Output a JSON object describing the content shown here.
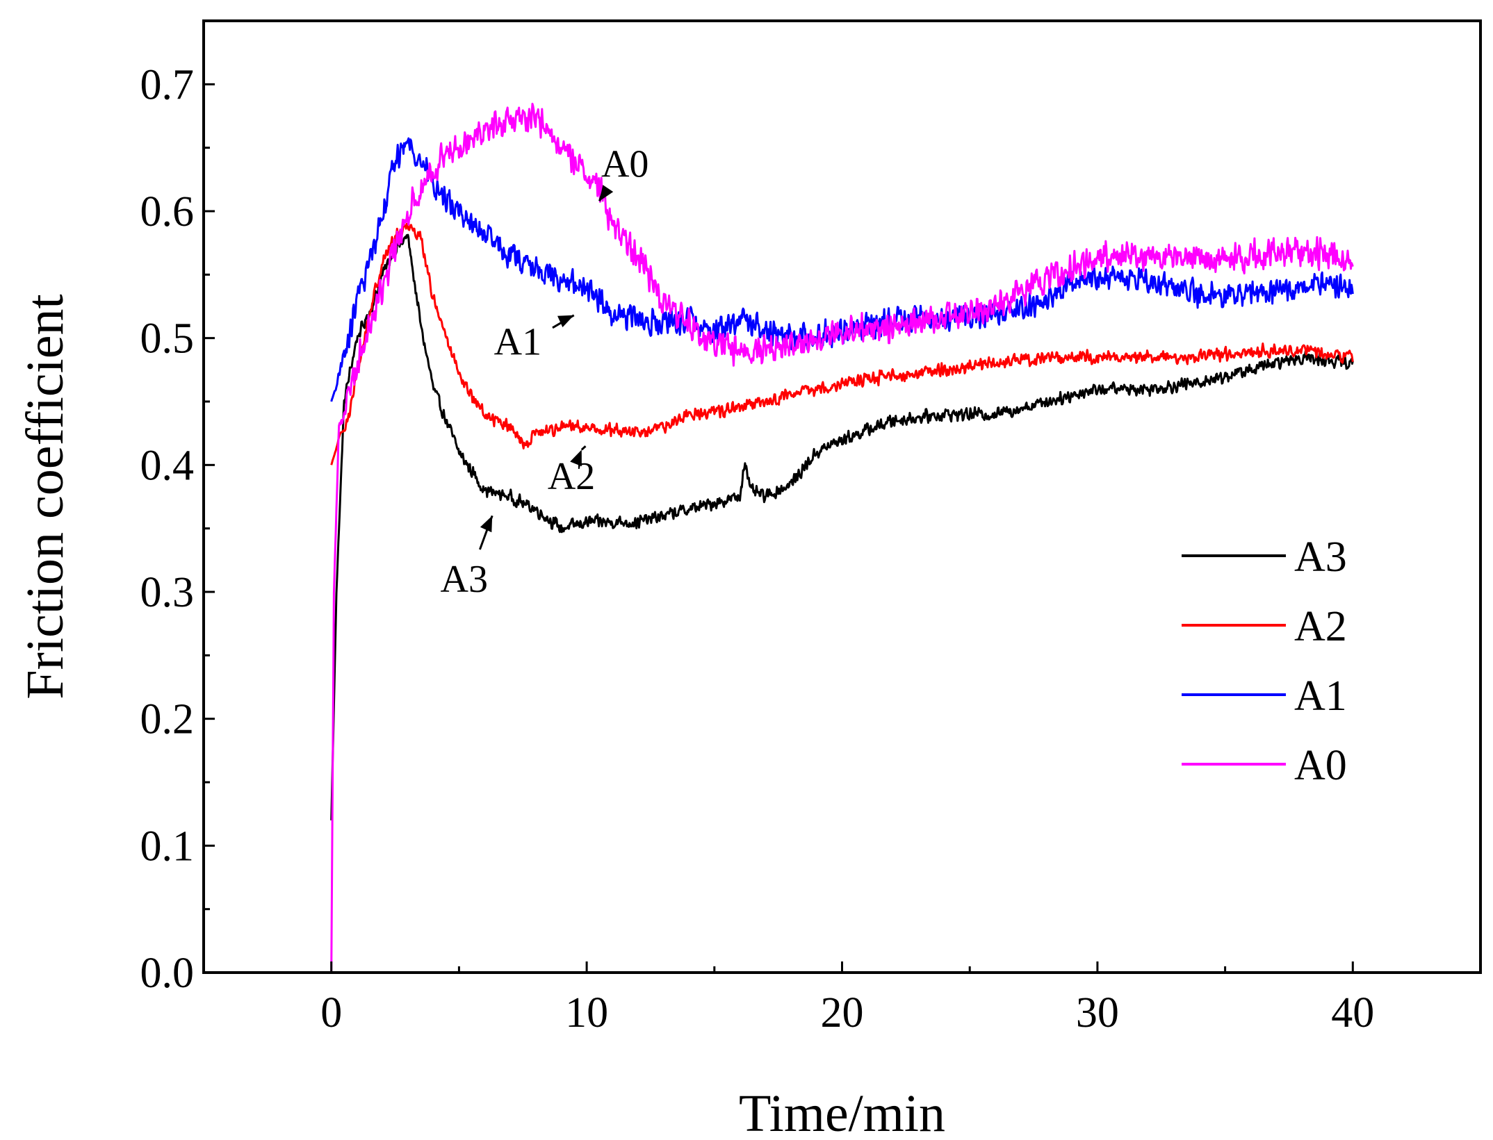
{
  "chart_data": {
    "type": "line",
    "title": "",
    "xlabel": "Time/min",
    "ylabel": "Friction coefficient",
    "xlim": [
      -5,
      45
    ],
    "ylim": [
      0,
      0.75
    ],
    "x_ticks": [
      0,
      10,
      20,
      30,
      40
    ],
    "x_tick_labels": [
      "0",
      "10",
      "20",
      "30",
      "40"
    ],
    "y_ticks": [
      0.0,
      0.1,
      0.2,
      0.3,
      0.4,
      0.5,
      0.6,
      0.7
    ],
    "y_tick_labels": [
      "0.0",
      "0.1",
      "0.2",
      "0.3",
      "0.4",
      "0.5",
      "0.6",
      "0.7"
    ],
    "grid": false,
    "legend_position": "bottom-right",
    "series": [
      {
        "name": "A3",
        "color": "#000000",
        "noise": 0.006,
        "points": [
          [
            0,
            0.12
          ],
          [
            0.2,
            0.3
          ],
          [
            0.5,
            0.45
          ],
          [
            1,
            0.5
          ],
          [
            1.5,
            0.52
          ],
          [
            2,
            0.55
          ],
          [
            2.5,
            0.57
          ],
          [
            3,
            0.58
          ],
          [
            3.5,
            0.51
          ],
          [
            4,
            0.46
          ],
          [
            5,
            0.41
          ],
          [
            6,
            0.38
          ],
          [
            7,
            0.375
          ],
          [
            8,
            0.365
          ],
          [
            9,
            0.35
          ],
          [
            10,
            0.355
          ],
          [
            12,
            0.355
          ],
          [
            14,
            0.365
          ],
          [
            16,
            0.375
          ],
          [
            16.2,
            0.405
          ],
          [
            16.4,
            0.38
          ],
          [
            17,
            0.375
          ],
          [
            18,
            0.385
          ],
          [
            19,
            0.41
          ],
          [
            20,
            0.42
          ],
          [
            22,
            0.435
          ],
          [
            24,
            0.44
          ],
          [
            26,
            0.44
          ],
          [
            28,
            0.45
          ],
          [
            30,
            0.46
          ],
          [
            32,
            0.46
          ],
          [
            34,
            0.465
          ],
          [
            36,
            0.475
          ],
          [
            38,
            0.485
          ],
          [
            40,
            0.48
          ]
        ]
      },
      {
        "name": "A2",
        "color": "#ff0000",
        "noise": 0.006,
        "points": [
          [
            0,
            0.4
          ],
          [
            0.3,
            0.42
          ],
          [
            0.7,
            0.44
          ],
          [
            1,
            0.47
          ],
          [
            1.5,
            0.52
          ],
          [
            2,
            0.56
          ],
          [
            2.5,
            0.58
          ],
          [
            3,
            0.59
          ],
          [
            3.5,
            0.58
          ],
          [
            4,
            0.53
          ],
          [
            5,
            0.47
          ],
          [
            6,
            0.44
          ],
          [
            7,
            0.43
          ],
          [
            7.5,
            0.415
          ],
          [
            8,
            0.425
          ],
          [
            9,
            0.43
          ],
          [
            10,
            0.43
          ],
          [
            12,
            0.425
          ],
          [
            13,
            0.43
          ],
          [
            14,
            0.44
          ],
          [
            16,
            0.445
          ],
          [
            18,
            0.455
          ],
          [
            20,
            0.465
          ],
          [
            22,
            0.47
          ],
          [
            24,
            0.475
          ],
          [
            26,
            0.48
          ],
          [
            28,
            0.485
          ],
          [
            30,
            0.485
          ],
          [
            32,
            0.485
          ],
          [
            34,
            0.485
          ],
          [
            36,
            0.49
          ],
          [
            38,
            0.49
          ],
          [
            40,
            0.485
          ]
        ]
      },
      {
        "name": "A1",
        "color": "#0000ff",
        "noise": 0.012,
        "points": [
          [
            0,
            0.45
          ],
          [
            0.3,
            0.47
          ],
          [
            0.7,
            0.5
          ],
          [
            1,
            0.53
          ],
          [
            1.5,
            0.56
          ],
          [
            2,
            0.6
          ],
          [
            2.5,
            0.64
          ],
          [
            3,
            0.655
          ],
          [
            3.5,
            0.64
          ],
          [
            4,
            0.62
          ],
          [
            5,
            0.6
          ],
          [
            6,
            0.58
          ],
          [
            7,
            0.565
          ],
          [
            8,
            0.555
          ],
          [
            9,
            0.545
          ],
          [
            10,
            0.54
          ],
          [
            11,
            0.52
          ],
          [
            12,
            0.515
          ],
          [
            13,
            0.51
          ],
          [
            14,
            0.515
          ],
          [
            15,
            0.505
          ],
          [
            16,
            0.515
          ],
          [
            18,
            0.5
          ],
          [
            20,
            0.505
          ],
          [
            22,
            0.515
          ],
          [
            24,
            0.515
          ],
          [
            26,
            0.52
          ],
          [
            28,
            0.53
          ],
          [
            29,
            0.545
          ],
          [
            30,
            0.55
          ],
          [
            32,
            0.545
          ],
          [
            34,
            0.535
          ],
          [
            36,
            0.535
          ],
          [
            38,
            0.54
          ],
          [
            39,
            0.545
          ],
          [
            40,
            0.54
          ]
        ]
      },
      {
        "name": "A0",
        "color": "#ff00ff",
        "noise": 0.014,
        "points": [
          [
            0,
            0.0
          ],
          [
            0.1,
            0.3
          ],
          [
            0.3,
            0.43
          ],
          [
            1,
            0.48
          ],
          [
            2,
            0.54
          ],
          [
            3,
            0.6
          ],
          [
            4,
            0.635
          ],
          [
            5,
            0.655
          ],
          [
            6,
            0.665
          ],
          [
            7,
            0.67
          ],
          [
            8,
            0.675
          ],
          [
            9,
            0.65
          ],
          [
            10,
            0.63
          ],
          [
            10.5,
            0.62
          ],
          [
            11,
            0.59
          ],
          [
            12,
            0.565
          ],
          [
            13,
            0.53
          ],
          [
            14,
            0.51
          ],
          [
            15,
            0.495
          ],
          [
            16,
            0.49
          ],
          [
            18,
            0.495
          ],
          [
            20,
            0.505
          ],
          [
            22,
            0.51
          ],
          [
            24,
            0.515
          ],
          [
            26,
            0.525
          ],
          [
            28,
            0.545
          ],
          [
            30,
            0.565
          ],
          [
            32,
            0.565
          ],
          [
            34,
            0.56
          ],
          [
            36,
            0.565
          ],
          [
            38,
            0.57
          ],
          [
            40,
            0.56
          ]
        ]
      }
    ],
    "annotations": [
      {
        "text": "A0",
        "series": "A0",
        "label_at": [
          11.5,
          0.627
        ],
        "arrow_to": [
          10.5,
          0.608
        ]
      },
      {
        "text": "A1",
        "series": "A1",
        "label_at": [
          7.3,
          0.487
        ],
        "arrow_to": [
          9.5,
          0.518
        ]
      },
      {
        "text": "A2",
        "series": "A2",
        "label_at": [
          9.4,
          0.381
        ],
        "arrow_to": [
          9.8,
          0.412
        ]
      },
      {
        "text": "A3",
        "series": "A3",
        "label_at": [
          5.2,
          0.3
        ],
        "arrow_to": [
          6.3,
          0.36
        ]
      }
    ]
  }
}
